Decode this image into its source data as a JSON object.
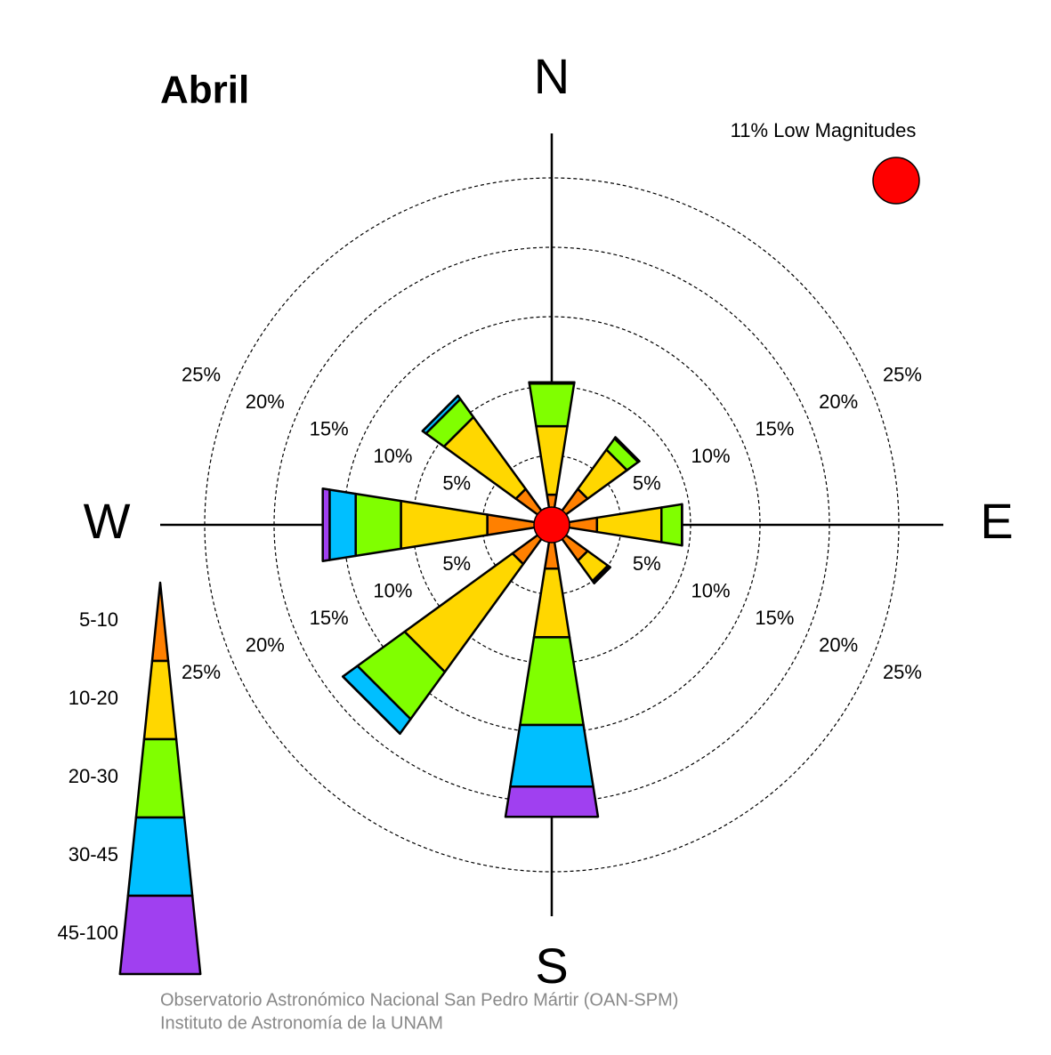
{
  "chart_data": {
    "type": "windrose",
    "title": "Abril",
    "categories": [
      "N",
      null,
      "E",
      null,
      "S",
      null,
      "W",
      null
    ],
    "series": [
      {
        "name": "5-10",
        "color": "#ff8000",
        "values": [
          2.2,
          3.2,
          3.3,
          3.2,
          3.2,
          3.5,
          4.7,
          3.2
        ]
      },
      {
        "name": "10-20",
        "color": "#ffd700",
        "values": [
          5.0,
          3.5,
          4.7,
          1.8,
          5.0,
          9.6,
          6.3,
          6.4
        ]
      },
      {
        "name": "20-30",
        "color": "#80ff00",
        "values": [
          3.1,
          1.0,
          1.5,
          0.1,
          6.4,
          4.2,
          3.3,
          1.6
        ]
      },
      {
        "name": "30-45",
        "color": "#00bfff",
        "values": [
          0.1,
          0.1,
          0,
          0.1,
          4.5,
          1.3,
          1.9,
          0.3
        ]
      },
      {
        "name": "45-100",
        "color": "#a040f0",
        "values": [
          0,
          0,
          0,
          0,
          2.2,
          0,
          0.5,
          0
        ]
      }
    ],
    "rlim": [
      0,
      25
    ],
    "rticks": [
      {
        "value": 5,
        "label": "5%"
      },
      {
        "value": 10,
        "label": "10%"
      },
      {
        "value": 15,
        "label": "15%"
      },
      {
        "value": 20,
        "label": "20%"
      },
      {
        "value": 25,
        "label": "25%"
      }
    ],
    "low_magnitudes": {
      "value": 11,
      "label": "11% Low Magnitudes",
      "color": "#ff0000"
    },
    "footer": [
      "Observatorio Astronómico Nacional San Pedro Mártir (OAN-SPM)",
      "Instituto de Astronomía de la UNAM"
    ]
  }
}
